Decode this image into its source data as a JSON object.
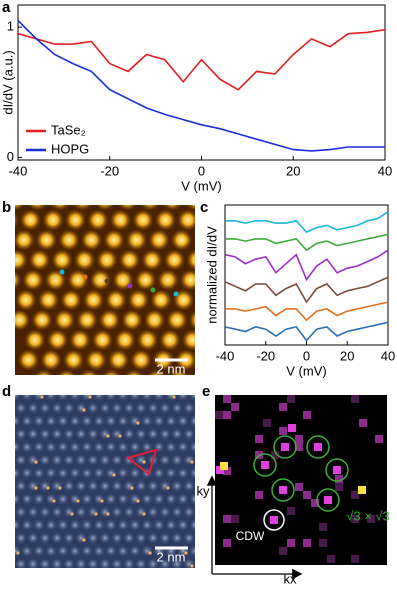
{
  "chart_data": [
    {
      "type": "line",
      "panel_label": "a",
      "x_label": "V (mV)",
      "y_label": "dI/dV (a.u.)",
      "x": [
        -40,
        -36,
        -32,
        -28,
        -24,
        -20,
        -16,
        -12,
        -8,
        -4,
        0,
        4,
        8,
        12,
        16,
        20,
        24,
        28,
        32,
        36,
        40
      ],
      "series": [
        {
          "name": "TaSe₂",
          "color": "#e02020",
          "values": [
            0.95,
            0.91,
            0.87,
            0.87,
            0.89,
            0.72,
            0.66,
            0.79,
            0.75,
            0.58,
            0.75,
            0.6,
            0.52,
            0.66,
            0.64,
            0.79,
            0.91,
            0.85,
            0.95,
            0.96,
            0.98
          ]
        },
        {
          "name": "HOPG",
          "color": "#1a2ee0",
          "values": [
            1.05,
            0.91,
            0.79,
            0.72,
            0.66,
            0.52,
            0.45,
            0.38,
            0.33,
            0.29,
            0.25,
            0.22,
            0.18,
            0.14,
            0.1,
            0.06,
            0.05,
            0.06,
            0.08,
            0.08,
            0.08
          ]
        }
      ],
      "xlim": [
        -40,
        40
      ],
      "xticks": [
        -40,
        -20,
        0,
        20,
        40
      ],
      "ylim": [
        -0.02,
        1.17
      ],
      "yticks": [
        0,
        1
      ],
      "legend": "lower-left"
    },
    {
      "type": "line",
      "panel_label": "c",
      "x_label": "V (mV)",
      "y_label": "normalized dI/dV",
      "x": [
        -40,
        -35,
        -30,
        -25,
        -20,
        -15,
        -10,
        -5,
        0,
        5,
        10,
        15,
        20,
        25,
        30,
        35,
        40
      ],
      "series": [
        {
          "color": "#2a6fb5",
          "values": [
            1.2,
            1.1,
            1.0,
            1.2,
            1.1,
            0.8,
            1.1,
            1.2,
            0.6,
            1.1,
            1.2,
            0.8,
            1.0,
            1.1,
            1.2,
            1.3,
            1.4
          ]
        },
        {
          "color": "#e07020",
          "values": [
            2.0,
            2.0,
            1.9,
            2.0,
            2.1,
            1.7,
            2.0,
            2.0,
            1.5,
            1.9,
            2.0,
            1.7,
            1.9,
            2.0,
            2.1,
            2.2,
            2.3
          ]
        },
        {
          "color": "#7a4b3a",
          "values": [
            3.2,
            3.0,
            2.8,
            3.1,
            3.1,
            2.6,
            2.9,
            3.1,
            2.3,
            2.9,
            3.1,
            2.6,
            2.8,
            2.9,
            3.0,
            3.2,
            3.4
          ]
        },
        {
          "color": "#9b2fc0",
          "values": [
            4.4,
            4.3,
            4.0,
            4.2,
            4.3,
            3.6,
            4.0,
            4.4,
            3.3,
            3.9,
            4.2,
            3.6,
            3.8,
            3.9,
            4.1,
            4.3,
            4.6
          ]
        },
        {
          "color": "#3aaa3a",
          "values": [
            5.1,
            5.1,
            5.0,
            5.1,
            5.1,
            4.9,
            5.0,
            5.1,
            4.6,
            4.9,
            5.0,
            4.8,
            4.9,
            5.0,
            5.1,
            5.2,
            5.3
          ]
        },
        {
          "color": "#1fb4d8",
          "values": [
            5.9,
            5.9,
            5.8,
            5.9,
            5.9,
            5.8,
            5.8,
            5.9,
            5.4,
            5.6,
            5.7,
            5.5,
            5.6,
            5.7,
            5.9,
            6.0,
            6.3
          ]
        }
      ],
      "xlim": [
        -40,
        40
      ],
      "xticks": [
        -40,
        -20,
        0,
        20,
        40
      ],
      "ylim": [
        0.4,
        6.6
      ]
    }
  ],
  "panels": {
    "b": {
      "label": "b",
      "scale_bar": "2 nm"
    },
    "d": {
      "label": "d",
      "scale_bar": "2 nm"
    },
    "e": {
      "label": "e",
      "annotation_cdw": "CDW",
      "annotation_superlattice": "√3 × √3",
      "x_axis": "kx",
      "y_axis": "ky"
    }
  }
}
